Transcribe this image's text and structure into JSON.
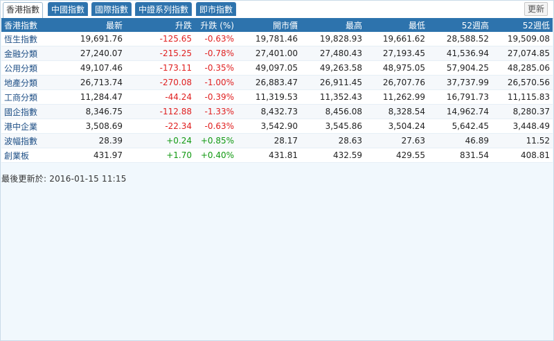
{
  "tabs": [
    {
      "label": "香港指數",
      "active": true
    },
    {
      "label": "中國指數",
      "active": false
    },
    {
      "label": "國際指數",
      "active": false
    },
    {
      "label": "中證系列指數",
      "active": false
    },
    {
      "label": "即市指數",
      "active": false
    }
  ],
  "refresh_label": "更新",
  "table": {
    "headers": [
      "香港指數",
      "最新",
      "升跌",
      "升跌 (%)",
      "開市價",
      "最高",
      "最低",
      "52週高",
      "52週低"
    ],
    "rows": [
      [
        "恆生指數",
        "19,691.76",
        "-125.65",
        "-0.63%",
        "19,781.46",
        "19,828.93",
        "19,661.62",
        "28,588.52",
        "19,509.08"
      ],
      [
        "金融分類",
        "27,240.07",
        "-215.25",
        "-0.78%",
        "27,401.00",
        "27,480.43",
        "27,193.45",
        "41,536.94",
        "27,074.85"
      ],
      [
        "公用分類",
        "49,107.46",
        "-173.11",
        "-0.35%",
        "49,097.05",
        "49,263.58",
        "48,975.05",
        "57,904.25",
        "48,285.06"
      ],
      [
        "地產分類",
        "26,713.74",
        "-270.08",
        "-1.00%",
        "26,883.47",
        "26,911.45",
        "26,707.76",
        "37,737.99",
        "26,570.56"
      ],
      [
        "工商分類",
        "11,284.47",
        "-44.24",
        "-0.39%",
        "11,319.53",
        "11,352.43",
        "11,262.99",
        "16,791.73",
        "11,115.83"
      ],
      [
        "國企指數",
        "8,346.75",
        "-112.88",
        "-1.33%",
        "8,432.73",
        "8,456.08",
        "8,328.54",
        "14,962.74",
        "8,280.37"
      ],
      [
        "港中企業",
        "3,508.69",
        "-22.34",
        "-0.63%",
        "3,542.90",
        "3,545.86",
        "3,504.24",
        "5,642.45",
        "3,448.49"
      ],
      [
        "波幅指數",
        "28.39",
        "+0.24",
        "+0.85%",
        "28.17",
        "28.63",
        "27.63",
        "46.89",
        "11.52"
      ],
      [
        "創業板",
        "431.97",
        "+1.70",
        "+0.40%",
        "431.81",
        "432.59",
        "429.55",
        "831.54",
        "408.81"
      ]
    ]
  },
  "last_updated": "最後更新於: 2016-01-15 11:15",
  "colors": {
    "header_bg": "#2d73ad",
    "negative": "#e02020",
    "positive": "#119911"
  }
}
